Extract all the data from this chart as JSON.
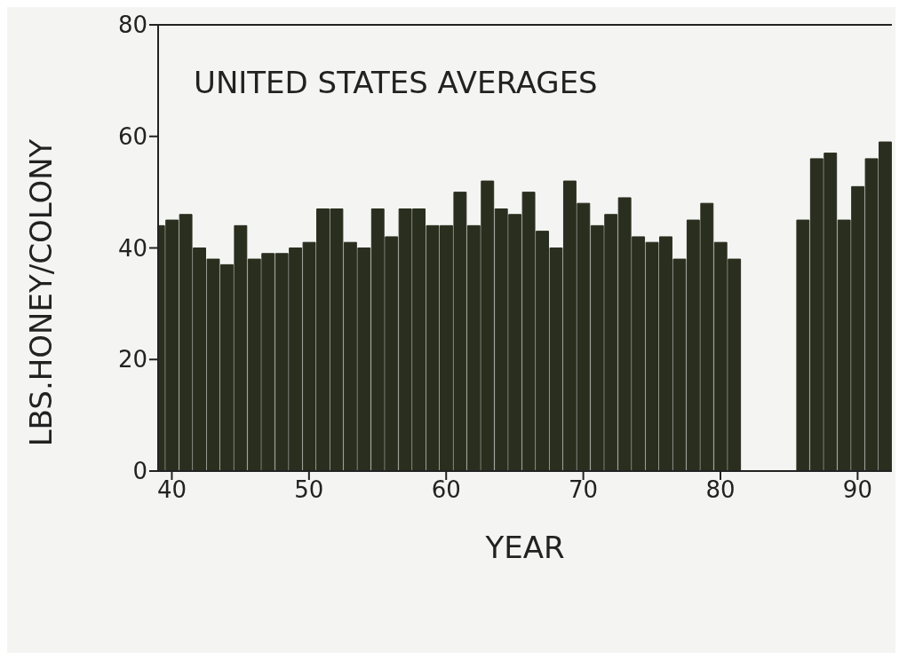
{
  "chart_data": {
    "type": "bar",
    "title": "UNITED STATES AVERAGES",
    "xlabel": "YEAR",
    "ylabel": "LBS.HONEY/COLONY",
    "x": [
      39,
      40,
      41,
      42,
      43,
      44,
      45,
      46,
      47,
      48,
      49,
      50,
      51,
      52,
      53,
      54,
      55,
      56,
      57,
      58,
      59,
      60,
      61,
      62,
      63,
      64,
      65,
      66,
      67,
      68,
      69,
      70,
      71,
      72,
      73,
      74,
      75,
      76,
      77,
      78,
      79,
      80,
      81,
      82,
      83,
      84,
      85,
      86,
      87,
      88,
      89,
      90,
      91,
      92
    ],
    "values": [
      44,
      45,
      46,
      40,
      38,
      37,
      44,
      38,
      39,
      39,
      40,
      41,
      47,
      47,
      41,
      40,
      47,
      42,
      47,
      47,
      44,
      44,
      50,
      44,
      52,
      47,
      46,
      50,
      43,
      40,
      52,
      48,
      44,
      46,
      49,
      42,
      41,
      42,
      38,
      45,
      48,
      41,
      38,
      null,
      null,
      null,
      null,
      45,
      56,
      57,
      45,
      51,
      56,
      59
    ],
    "color": "#2a2e1e",
    "xlim": [
      39,
      92.5
    ],
    "xticks": [
      40,
      50,
      60,
      70,
      80,
      90
    ],
    "ylim": [
      0,
      80
    ],
    "yticks": [
      0,
      20,
      40,
      60,
      80
    ]
  }
}
